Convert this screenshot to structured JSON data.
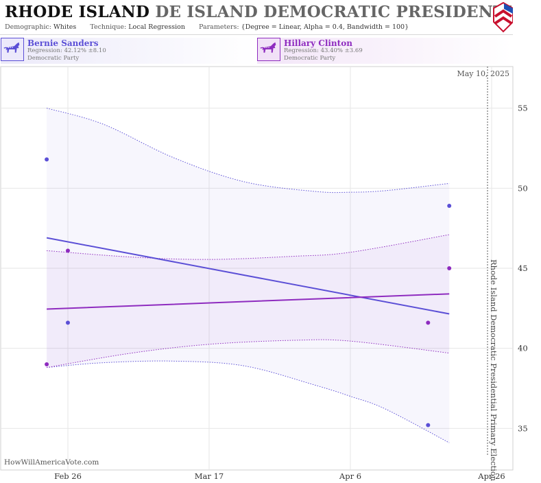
{
  "header": {
    "title_strong": "RHODE ISLAND",
    "title_light": "DE ISLAND DEMOCRATIC PRESIDENTIAL PRIMA",
    "demographic_key": "Demographic:",
    "demographic_val": "Whites",
    "technique_key": "Technique:",
    "technique_val": "Local Regression",
    "parameters_key": "Parameters:",
    "parameters_val": "{Degree = Linear, Alpha = 0.4, Bandwidth = 100}"
  },
  "candidates": [
    {
      "name": "Bernie Sanders",
      "regression": "Regression: 42.12% ±8.10",
      "party": "Democratic Party",
      "color": "#5b4fd6",
      "icon": "donkey-icon"
    },
    {
      "name": "Hillary Clinton",
      "regression": "Regression: 43.40% ±3.69",
      "party": "Democratic Party",
      "color": "#8e2bbf",
      "icon": "donkey-icon"
    }
  ],
  "credit": "HowWillAmericaVote.com",
  "chart_data": {
    "type": "line",
    "current_date_label": "May 10, 2025",
    "election_label": "Rhode Island Democratic Presidential Primary Election",
    "x_ticks": [
      "Feb 26",
      "Mar 17",
      "Apr 6",
      "Apr 26"
    ],
    "y_ticks": [
      35,
      40,
      45,
      50,
      55
    ],
    "ylim": [
      32.4,
      57.6
    ],
    "grid": true,
    "series": [
      {
        "name": "Bernie Sanders",
        "color": "#5b4fd6",
        "trend_x": [
          "Feb 23",
          "Apr 20"
        ],
        "trend": [
          46.9,
          42.15
        ],
        "upper_x": [
          "Feb 23",
          "Mar 2",
          "Mar 12",
          "Mar 22",
          "Apr 1",
          "Apr 6",
          "Apr 11",
          "Apr 20"
        ],
        "upper": [
          55.0,
          54.0,
          51.9,
          50.4,
          49.8,
          49.75,
          49.85,
          50.3
        ],
        "lower_x": [
          "Feb 23",
          "Mar 2",
          "Mar 12",
          "Mar 22",
          "Apr 1",
          "Apr 6",
          "Apr 11",
          "Apr 20"
        ],
        "lower": [
          38.8,
          39.1,
          39.2,
          38.9,
          37.7,
          37.0,
          36.2,
          34.1
        ],
        "points_x": [
          "Feb 23",
          "Feb 26",
          "Apr 17",
          "Apr 20"
        ],
        "points": [
          51.8,
          41.6,
          35.2,
          48.9
        ]
      },
      {
        "name": "Hillary Clinton",
        "color": "#8e2bbf",
        "trend_x": [
          "Feb 23",
          "Apr 20"
        ],
        "trend": [
          42.45,
          43.4
        ],
        "upper_x": [
          "Feb 23",
          "Mar 6",
          "Mar 17",
          "Mar 29",
          "Apr 6",
          "Apr 20"
        ],
        "upper": [
          46.1,
          45.7,
          45.55,
          45.75,
          46.0,
          47.1
        ],
        "lower_x": [
          "Feb 23",
          "Mar 6",
          "Mar 17",
          "Mar 29",
          "Apr 6",
          "Apr 20"
        ],
        "lower": [
          38.8,
          39.7,
          40.25,
          40.5,
          40.45,
          39.7
        ],
        "points_x": [
          "Feb 23",
          "Feb 26",
          "Apr 17",
          "Apr 20"
        ],
        "points": [
          39.0,
          46.1,
          41.6,
          45.0
        ]
      }
    ]
  }
}
